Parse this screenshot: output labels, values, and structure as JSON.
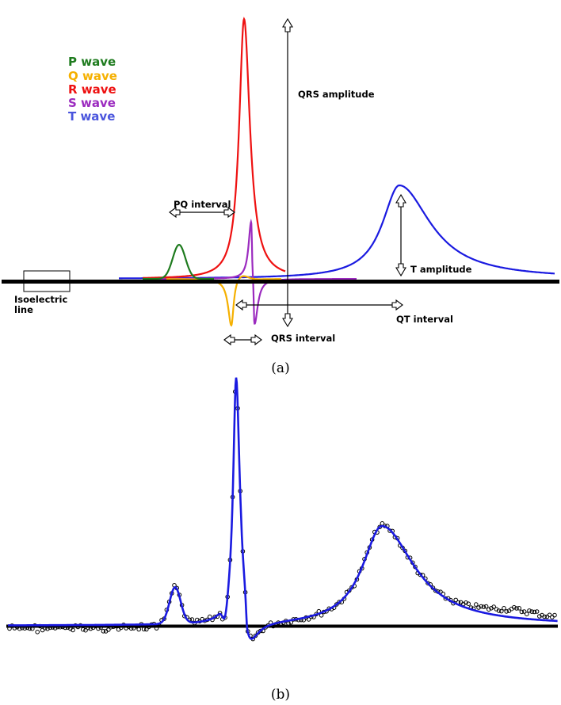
{
  "panel_a": {
    "caption": "(a)",
    "legend": [
      {
        "label": "P wave",
        "color": "#1e7b1e"
      },
      {
        "label": "Q wave",
        "color": "#f5b000"
      },
      {
        "label": "R wave",
        "color": "#ee1111"
      },
      {
        "label": "S wave",
        "color": "#9b2bbf"
      },
      {
        "label": "T wave",
        "color": "#4a55dd"
      }
    ],
    "annotations": {
      "qrs_amplitude": "QRS amplitude",
      "pq_interval": "PQ interval",
      "t_amplitude": "T amplitude",
      "isoelectric_1": "Isoelectric",
      "isoelectric_2": "line",
      "qt_interval": "QT interval",
      "qrs_interval": "QRS interval"
    },
    "colors": {
      "p": "#1e7b1e",
      "q": "#f5b000",
      "r": "#ee1111",
      "s": "#9b2bbf",
      "t": "#1a1ae0",
      "baseline": "#000000"
    }
  },
  "panel_b": {
    "caption": "(b)",
    "colors": {
      "fit": "#1a1ae0",
      "measured": "#000000",
      "baseline": "#000000"
    }
  }
}
